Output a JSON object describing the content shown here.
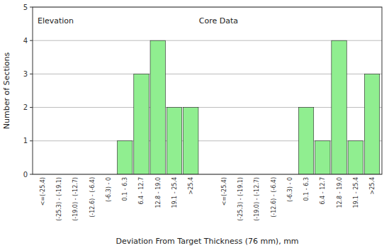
{
  "chart_data": {
    "type": "bar",
    "categories": [
      "<=(-25.4)",
      "(-25.3) - (-19.1)",
      "(-19.0) - (-12.7)",
      "(-12.6) - (-6.4)",
      "(-6.3) - 0",
      "0.1 - 6.3",
      "6.4 - 12.7",
      "12.8 - 19.0",
      "19.1 - 25.4",
      ">25.4",
      "<=(-25.4)",
      "(-25.3) - (-19.1)",
      "(-19.0) - (-12.7)",
      "(-12.6) - (-6.4)",
      "(-6.3) - 0",
      "0.1 - 6.3",
      "6.4 - 12.7",
      "12.8 - 19.0",
      "19.1 - 25.4",
      ">25.4"
    ],
    "values": [
      0,
      0,
      0,
      0,
      0,
      1,
      3,
      4,
      2,
      2,
      0,
      0,
      0,
      0,
      0,
      2,
      1,
      4,
      1,
      3
    ],
    "color": "#90EE90",
    "xlabel": "Deviation From Target Thickness (76 mm), mm",
    "ylabel": "Number of Sections",
    "ylim": [
      0,
      5
    ],
    "yticks": [
      0,
      1,
      2,
      3,
      4,
      5
    ],
    "grid": true,
    "annotations": [
      {
        "text": "Elevation",
        "category": 0
      },
      {
        "text": "Core Data",
        "category": 10
      }
    ]
  }
}
